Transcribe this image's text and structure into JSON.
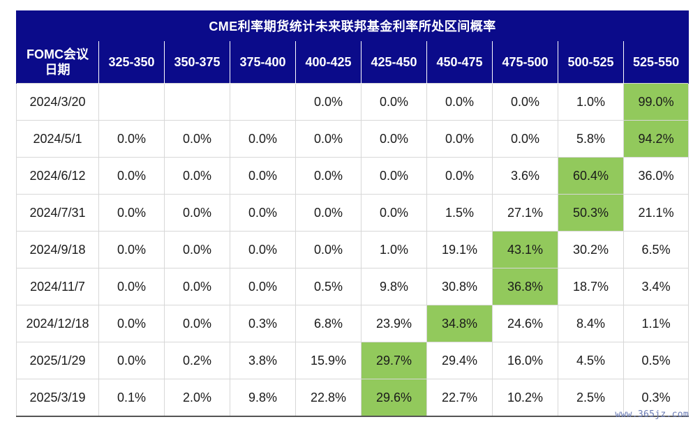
{
  "title": "CME利率期货统计未来联邦基金利率所处区间概率",
  "header": {
    "date_label_line1": "FOMC会议",
    "date_label_line2": "日期",
    "ranges": [
      "325-350",
      "350-375",
      "375-400",
      "400-425",
      "425-450",
      "450-475",
      "475-500",
      "500-525",
      "525-550"
    ]
  },
  "rows": [
    {
      "date": "2024/3/20",
      "values": [
        "",
        "",
        "",
        "0.0%",
        "0.0%",
        "0.0%",
        "0.0%",
        "1.0%",
        "99.0%"
      ],
      "highlight_index": 8
    },
    {
      "date": "2024/5/1",
      "values": [
        "0.0%",
        "0.0%",
        "0.0%",
        "0.0%",
        "0.0%",
        "0.0%",
        "0.0%",
        "5.8%",
        "94.2%"
      ],
      "highlight_index": 8
    },
    {
      "date": "2024/6/12",
      "values": [
        "0.0%",
        "0.0%",
        "0.0%",
        "0.0%",
        "0.0%",
        "0.0%",
        "3.6%",
        "60.4%",
        "36.0%"
      ],
      "highlight_index": 7
    },
    {
      "date": "2024/7/31",
      "values": [
        "0.0%",
        "0.0%",
        "0.0%",
        "0.0%",
        "0.0%",
        "1.5%",
        "27.1%",
        "50.3%",
        "21.1%"
      ],
      "highlight_index": 7
    },
    {
      "date": "2024/9/18",
      "values": [
        "0.0%",
        "0.0%",
        "0.0%",
        "0.0%",
        "1.0%",
        "19.1%",
        "43.1%",
        "30.2%",
        "6.5%"
      ],
      "highlight_index": 6
    },
    {
      "date": "2024/11/7",
      "values": [
        "0.0%",
        "0.0%",
        "0.0%",
        "0.5%",
        "9.8%",
        "30.8%",
        "36.8%",
        "18.7%",
        "3.4%"
      ],
      "highlight_index": 6
    },
    {
      "date": "2024/12/18",
      "values": [
        "0.0%",
        "0.0%",
        "0.3%",
        "6.8%",
        "23.9%",
        "34.8%",
        "24.6%",
        "8.4%",
        "1.1%"
      ],
      "highlight_index": 5
    },
    {
      "date": "2025/1/29",
      "values": [
        "0.0%",
        "0.2%",
        "3.8%",
        "15.9%",
        "29.7%",
        "29.4%",
        "16.0%",
        "4.5%",
        "0.5%"
      ],
      "highlight_index": 4
    },
    {
      "date": "2025/3/19",
      "values": [
        "0.1%",
        "2.0%",
        "9.8%",
        "22.8%",
        "29.6%",
        "22.7%",
        "10.2%",
        "2.5%",
        "0.3%"
      ],
      "highlight_index": 4
    }
  ],
  "watermark": "www.365jz.com",
  "colors": {
    "header_bg": "#0b0b8a",
    "highlight": "#92c95c"
  }
}
